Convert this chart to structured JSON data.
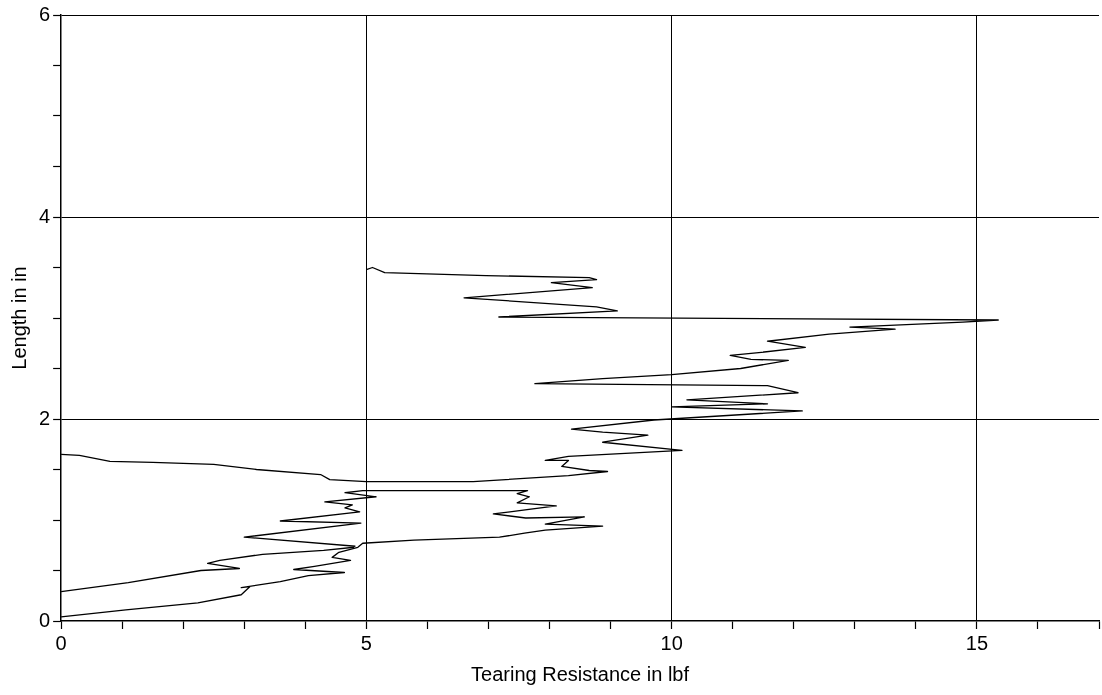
{
  "chart_data": {
    "type": "line",
    "xlabel": "Tearing Resistance in lbf",
    "ylabel": "Length in in",
    "xlim": [
      0,
      17
    ],
    "ylim": [
      0,
      6
    ],
    "xticks": [
      0,
      {
        "value": 1,
        "label": null
      },
      {
        "value": 2,
        "label": null
      },
      {
        "value": 3,
        "label": null
      },
      {
        "value": 4,
        "label": null
      },
      5,
      {
        "value": 6,
        "label": null
      },
      {
        "value": 7,
        "label": null
      },
      {
        "value": 8,
        "label": null
      },
      {
        "value": 9,
        "label": null
      },
      10,
      {
        "value": 11,
        "label": null
      },
      {
        "value": 12,
        "label": null
      },
      {
        "value": 13,
        "label": null
      },
      {
        "value": 14,
        "label": null
      },
      15,
      {
        "value": 16,
        "label": null
      },
      {
        "value": 17,
        "label": null
      }
    ],
    "yticks": [
      0,
      {
        "value": 0.5,
        "label": null
      },
      {
        "value": 1,
        "label": null
      },
      {
        "value": 1.5,
        "label": null
      },
      2,
      {
        "value": 2.5,
        "label": null
      },
      {
        "value": 3,
        "label": null
      },
      {
        "value": 3.5,
        "label": null
      },
      4,
      {
        "value": 4.5,
        "label": null
      },
      {
        "value": 5,
        "label": null
      },
      {
        "value": 5.5,
        "label": null
      },
      6
    ],
    "grid": true,
    "legend": false,
    "marker": "none",
    "line_style": "solid",
    "series": [
      {
        "color": "#000000",
        "x": [
          0,
          1.06,
          2.24,
          2.95,
          3.09,
          2.95,
          3.59,
          4.05,
          4.64,
          3.81,
          4.15,
          4.74,
          4.44,
          4.55,
          4.86,
          4.94,
          5.78,
          7.18,
          7.59,
          7.93,
          8.87,
          7.93,
          8.57,
          7.61,
          7.08,
          8.11,
          7.47,
          7.67,
          7.47,
          7.64,
          4.94,
          4.65,
          5.16,
          4.32,
          4.77,
          4.65,
          4.89,
          3.59,
          4.91,
          3.0,
          4.82
        ],
        "values": [
          0.04,
          0.11,
          0.18,
          0.26,
          0.34,
          0.33,
          0.39,
          0.45,
          0.48,
          0.51,
          0.54,
          0.6,
          0.63,
          0.68,
          0.73,
          0.77,
          0.8,
          0.83,
          0.87,
          0.9,
          0.94,
          0.96,
          1.03,
          1.02,
          1.06,
          1.14,
          1.17,
          1.23,
          1.26,
          1.29,
          1.29,
          1.27,
          1.23,
          1.18,
          1.15,
          1.12,
          1.08,
          0.99,
          0.97,
          0.83,
          0.74
        ]
      },
      {
        "color": "#000000",
        "x": [
          0,
          1.1,
          2.29,
          2.92,
          2.4,
          2.6,
          3.3,
          4.3,
          4.8
        ],
        "values": [
          0.29,
          0.38,
          0.5,
          0.52,
          0.57,
          0.6,
          0.66,
          0.7,
          0.73
        ]
      },
      {
        "color": "#000000",
        "x": [
          0,
          0.3,
          0.8,
          1.5,
          2.5,
          3.2,
          4.25,
          4.4,
          5.0,
          6.0,
          6.75,
          8.31,
          8.95,
          8.65,
          8.2,
          8.31,
          7.93,
          8.31,
          10.17,
          8.87,
          9.61,
          8.87,
          8.36,
          9.71,
          12.14,
          10.0,
          11.57,
          10.25,
          12.07,
          11.57,
          7.76,
          8.87,
          10.0,
          11.13,
          11.91,
          11.3,
          10.96,
          11.47,
          12.19,
          11.57,
          12.58,
          13.66,
          12.92,
          14.77,
          15.35,
          7.17,
          9.11,
          8.77,
          6.6,
          8.7,
          8.03,
          8.77,
          8.65,
          6.96,
          5.3,
          5.1,
          5.0
        ],
        "values": [
          1.65,
          1.64,
          1.58,
          1.57,
          1.55,
          1.5,
          1.45,
          1.4,
          1.38,
          1.38,
          1.38,
          1.44,
          1.48,
          1.49,
          1.53,
          1.59,
          1.59,
          1.63,
          1.69,
          1.77,
          1.84,
          1.87,
          1.9,
          1.99,
          2.08,
          2.12,
          2.15,
          2.19,
          2.26,
          2.33,
          2.35,
          2.4,
          2.44,
          2.5,
          2.58,
          2.59,
          2.63,
          2.66,
          2.71,
          2.77,
          2.84,
          2.89,
          2.91,
          2.96,
          2.98,
          3.01,
          3.07,
          3.11,
          3.2,
          3.3,
          3.35,
          3.38,
          3.4,
          3.42,
          3.45,
          3.5,
          3.48
        ]
      }
    ]
  }
}
